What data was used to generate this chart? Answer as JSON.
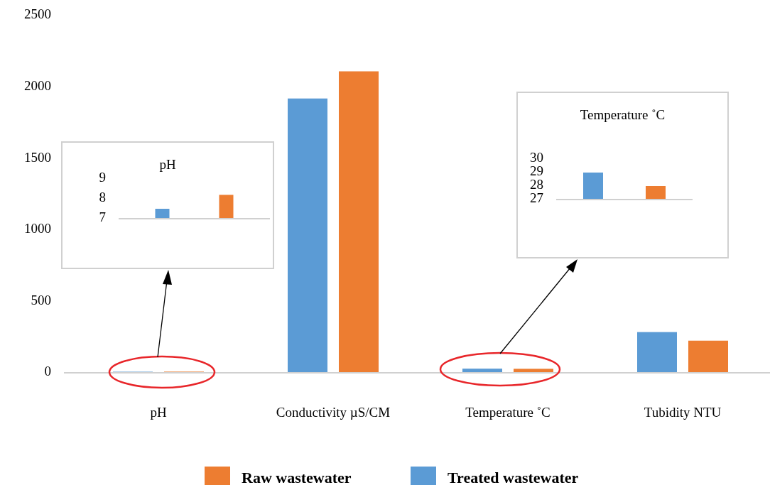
{
  "chart_data": [
    {
      "type": "bar",
      "categories": [
        "pH",
        "Conductivity  µS/CM",
        "Temperature  ˚C",
        "Tubidity  NTU"
      ],
      "series": [
        {
          "name": "Treated wastewater",
          "color": "#5b9bd5",
          "values": [
            7.5,
            1920,
            29,
            285
          ]
        },
        {
          "name": "Raw wastewater",
          "color": "#ed7d31",
          "values": [
            8.2,
            2110,
            28,
            225
          ]
        }
      ],
      "ylim": [
        0,
        2500
      ],
      "yticks": [
        0,
        500,
        1000,
        1500,
        2000,
        2500
      ],
      "legend": "bottom"
    },
    {
      "type": "bar",
      "title": "pH",
      "categories": [
        null
      ],
      "series": [
        {
          "color": "#5b9bd5",
          "values": [
            7.5
          ]
        },
        {
          "color": "#ed7d31",
          "values": [
            8.2
          ]
        }
      ],
      "ylim": [
        7,
        9
      ],
      "yticks": [
        7,
        8,
        9
      ]
    },
    {
      "type": "bar",
      "title": "Temperature ˚C",
      "categories": [
        null
      ],
      "series": [
        {
          "color": "#5b9bd5",
          "values": [
            29
          ]
        },
        {
          "color": "#ed7d31",
          "values": [
            28
          ]
        }
      ],
      "ylim": [
        27,
        30
      ],
      "yticks": [
        27,
        28,
        29,
        30
      ]
    }
  ]
}
